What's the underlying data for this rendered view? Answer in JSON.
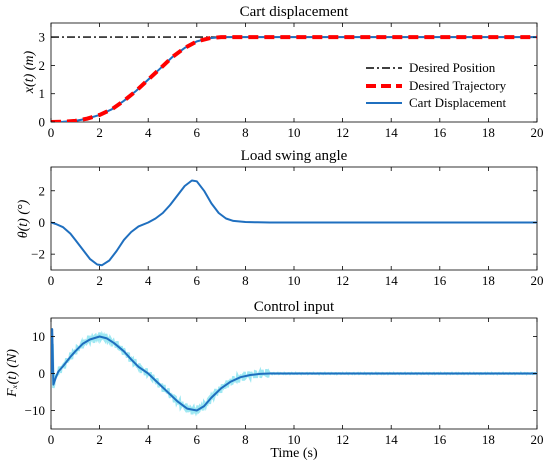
{
  "chart_data": [
    {
      "type": "line",
      "title": "Cart displacement",
      "xlabel": "",
      "ylabel": "x(t) (m)",
      "xlim": [
        0,
        20
      ],
      "ylim": [
        0,
        3.5
      ],
      "xticks": [
        "0",
        "2",
        "4",
        "6",
        "8",
        "10",
        "12",
        "14",
        "16",
        "18",
        "20"
      ],
      "yticks": [
        "0",
        "1",
        "2",
        "3"
      ],
      "legend": "top-right",
      "series": [
        {
          "name": "Desired Position",
          "color": "#000000",
          "style": "dash-dot",
          "x": [
            0,
            20
          ],
          "y": [
            3,
            3
          ]
        },
        {
          "name": "Desired Trajectory",
          "color": "#ff0000",
          "style": "dashed",
          "x": [
            0,
            0.5,
            1,
            1.5,
            2,
            2.5,
            3,
            3.5,
            4,
            4.5,
            5,
            5.5,
            6,
            6.5,
            7,
            7.5,
            8,
            9,
            10,
            12,
            14,
            16,
            18,
            20
          ],
          "y": [
            0.0,
            0.01,
            0.04,
            0.12,
            0.25,
            0.45,
            0.75,
            1.1,
            1.5,
            1.9,
            2.3,
            2.62,
            2.85,
            2.96,
            3.0,
            3.0,
            3.0,
            3.0,
            3.0,
            3.0,
            3.0,
            3.0,
            3.0,
            3.0
          ]
        },
        {
          "name": "Cart Displacement",
          "color": "#1f6fbf",
          "style": "solid",
          "x": [
            0,
            0.5,
            1,
            1.5,
            2,
            2.5,
            3,
            3.5,
            4,
            4.5,
            5,
            5.5,
            6,
            6.5,
            7,
            7.5,
            8,
            9,
            10,
            12,
            14,
            16,
            18,
            20
          ],
          "y": [
            0.0,
            0.01,
            0.04,
            0.12,
            0.25,
            0.45,
            0.75,
            1.1,
            1.5,
            1.9,
            2.3,
            2.62,
            2.85,
            2.96,
            3.0,
            3.0,
            3.0,
            3.0,
            3.0,
            3.0,
            3.0,
            3.0,
            3.0,
            3.0
          ]
        }
      ]
    },
    {
      "type": "line",
      "title": "Load swing angle",
      "xlabel": "",
      "ylabel": "θ(t) (°)",
      "xlim": [
        0,
        20
      ],
      "ylim": [
        -3,
        3.5
      ],
      "xticks": [
        "0",
        "2",
        "4",
        "6",
        "8",
        "10",
        "12",
        "14",
        "16",
        "18",
        "20"
      ],
      "yticks": [
        "−2",
        "0",
        "2"
      ],
      "series": [
        {
          "color": "#1f6fbf",
          "style": "solid",
          "x": [
            0,
            0.2,
            0.5,
            0.8,
            1.0,
            1.3,
            1.6,
            1.9,
            2.1,
            2.4,
            2.7,
            3.0,
            3.3,
            3.6,
            4.0,
            4.3,
            4.6,
            4.9,
            5.2,
            5.5,
            5.8,
            6.0,
            6.3,
            6.6,
            6.9,
            7.2,
            7.5,
            8.0,
            8.5,
            9.0,
            10,
            12,
            14,
            16,
            18,
            20
          ],
          "y": [
            0.0,
            -0.1,
            -0.3,
            -0.7,
            -1.1,
            -1.7,
            -2.3,
            -2.65,
            -2.7,
            -2.4,
            -1.8,
            -1.1,
            -0.6,
            -0.25,
            0.0,
            0.25,
            0.6,
            1.1,
            1.7,
            2.3,
            2.65,
            2.6,
            2.0,
            1.2,
            0.6,
            0.25,
            0.1,
            0.03,
            0.01,
            0.0,
            0.0,
            0.0,
            0.0,
            0.0,
            0.0,
            0.0
          ]
        }
      ]
    },
    {
      "type": "line",
      "title": "Control input",
      "xlabel": "Time (s)",
      "ylabel": "Fₓ(t) (N)",
      "xlim": [
        0,
        20
      ],
      "ylim": [
        -15,
        15
      ],
      "xticks": [
        "0",
        "2",
        "4",
        "6",
        "8",
        "10",
        "12",
        "14",
        "16",
        "18",
        "20"
      ],
      "yticks": [
        "−10",
        "0",
        "10"
      ],
      "series": [
        {
          "color": "#1f6fbf",
          "style": "solid-noisy",
          "x": [
            0,
            0.05,
            0.1,
            0.2,
            0.3,
            0.5,
            0.8,
            1.0,
            1.3,
            1.6,
            2.0,
            2.3,
            2.6,
            3.0,
            3.3,
            3.6,
            4.0,
            4.4,
            4.8,
            5.2,
            5.6,
            6.0,
            6.3,
            6.6,
            7.0,
            7.4,
            7.8,
            8.2,
            8.6,
            9.0,
            9.5,
            10,
            12,
            14,
            16,
            18,
            20
          ],
          "y": [
            0,
            12,
            -3,
            -1,
            0.5,
            2,
            4.5,
            6,
            8,
            9.2,
            10,
            9.5,
            8.2,
            6,
            3.8,
            1.8,
            0,
            -2.5,
            -5,
            -7.5,
            -9.5,
            -10,
            -8.8,
            -6.5,
            -4,
            -2.2,
            -1,
            -0.4,
            -0.1,
            0,
            0,
            0,
            0,
            0,
            0,
            0,
            0
          ]
        }
      ]
    }
  ]
}
